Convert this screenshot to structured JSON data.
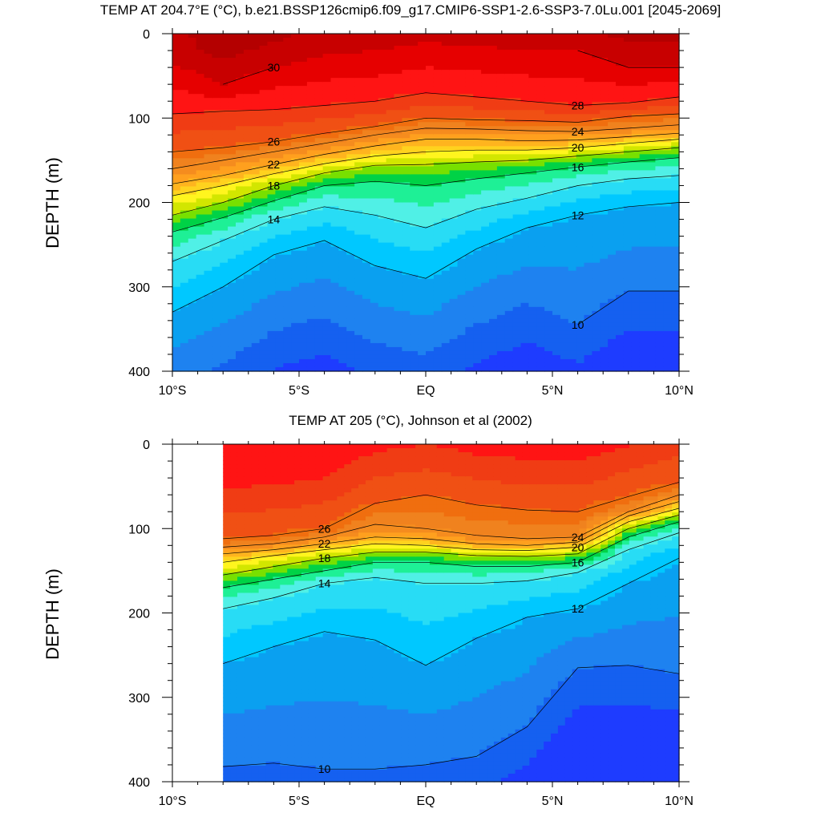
{
  "chart_data": [
    {
      "type": "heatmap",
      "subtype": "filled-contour depth section",
      "title": "TEMP AT 204.7°E (°C), b.e21.BSSP126cmip6.f09_g17.CMIP6-SSP1-2.6-SSP3-7.0Lu.001 [2045-2069]",
      "xlabel": "",
      "ylabel": "DEPTH (m)",
      "xlim": [
        -10,
        10
      ],
      "ylim": [
        400,
        0
      ],
      "x_tick_values": [
        -10,
        -5,
        0,
        5,
        10
      ],
      "x_tick_labels": [
        "10°S",
        "5°S",
        "EQ",
        "5°N",
        "10°N"
      ],
      "y_tick_values": [
        0,
        100,
        200,
        300,
        400
      ],
      "y_tick_labels": [
        "0",
        "100",
        "200",
        "300",
        "400"
      ],
      "data_x_range": [
        -10,
        10
      ],
      "levels": [
        30,
        28,
        26,
        24,
        22,
        20,
        18,
        16,
        14,
        12,
        10
      ],
      "isotherm_depths": {
        "lat": [
          -10,
          -8,
          -6,
          -4,
          -2,
          0,
          2,
          4,
          6,
          8,
          10
        ],
        "lines": [
          {
            "t": 30,
            "depth": [
              null,
              60,
              40,
              null,
              null,
              null,
              null,
              null,
              20,
              40,
              40
            ]
          },
          {
            "t": 28,
            "depth": [
              95,
              92,
              90,
              85,
              80,
              70,
              75,
              80,
              85,
              82,
              75
            ]
          },
          {
            "t": 26,
            "depth": [
              140,
              135,
              128,
              118,
              110,
              100,
              102,
              103,
              105,
              98,
              95
            ]
          },
          {
            "t": 24,
            "depth": [
              160,
              150,
              140,
              130,
              120,
              112,
              113,
              115,
              116,
              112,
              108
            ]
          },
          {
            "t": 22,
            "depth": [
              178,
              168,
              155,
              143,
              133,
              125,
              125,
              127,
              126,
              122,
              118
            ]
          },
          {
            "t": 20,
            "depth": [
              192,
              180,
              166,
              154,
              145,
              140,
              138,
              138,
              135,
              130,
              125
            ]
          },
          {
            "t": 18,
            "depth": [
              215,
              200,
              180,
              165,
              156,
              155,
              152,
              150,
              145,
              140,
              135
            ]
          },
          {
            "t": 16,
            "depth": [
              235,
              218,
              198,
              180,
              175,
              180,
              172,
              165,
              158,
              152,
              147
            ]
          },
          {
            "t": 14,
            "depth": [
              270,
              245,
              220,
              205,
              215,
              230,
              208,
              195,
              180,
              172,
              168
            ]
          },
          {
            "t": 12,
            "depth": [
              330,
              300,
              262,
              245,
              275,
              290,
              255,
              230,
              215,
              205,
              200
            ]
          },
          {
            "t": 10,
            "depth": [
              null,
              null,
              null,
              null,
              null,
              null,
              null,
              null,
              345,
              305,
              305
            ]
          }
        ]
      },
      "contour_labels": [
        "30",
        "28",
        "26",
        "24",
        "22",
        "20",
        "18",
        "16",
        "14",
        "12",
        "10"
      ]
    },
    {
      "type": "heatmap",
      "subtype": "filled-contour depth section",
      "title": "TEMP AT 205 (°C), Johnson et al (2002)",
      "xlabel": "",
      "ylabel": "DEPTH (m)",
      "xlim": [
        -10,
        10
      ],
      "ylim": [
        400,
        0
      ],
      "x_tick_values": [
        -10,
        -5,
        0,
        5,
        10
      ],
      "x_tick_labels": [
        "10°S",
        "5°S",
        "EQ",
        "5°N",
        "10°N"
      ],
      "y_tick_values": [
        0,
        100,
        200,
        300,
        400
      ],
      "y_tick_labels": [
        "0",
        "100",
        "200",
        "300",
        "400"
      ],
      "data_x_range": [
        -8,
        10
      ],
      "levels": [
        26,
        24,
        22,
        20,
        18,
        16,
        14,
        12,
        10
      ],
      "isotherm_depths": {
        "lat": [
          -8,
          -6,
          -4,
          -2,
          0,
          2,
          4,
          6,
          8,
          10
        ],
        "lines": [
          {
            "t": 26,
            "depth": [
              112,
              108,
              100,
              70,
              60,
              72,
              78,
              80,
              62,
              45
            ]
          },
          {
            "t": 24,
            "depth": [
              122,
              118,
              110,
              95,
              100,
              108,
              112,
              110,
              80,
              60
            ]
          },
          {
            "t": 22,
            "depth": [
              130,
              125,
              118,
              110,
              112,
              118,
              120,
              116,
              85,
              68
            ]
          },
          {
            "t": 20,
            "depth": [
              140,
              132,
              125,
              118,
              120,
              125,
              126,
              122,
              92,
              76
            ]
          },
          {
            "t": 18,
            "depth": [
              155,
              145,
              135,
              128,
              128,
              132,
              133,
              130,
              100,
              84
            ]
          },
          {
            "t": 16,
            "depth": [
              170,
              160,
              150,
              140,
              140,
              145,
              145,
              140,
              110,
              92
            ]
          },
          {
            "t": 14,
            "depth": [
              195,
              182,
              165,
              158,
              165,
              165,
              162,
              152,
              125,
              105
            ]
          },
          {
            "t": 12,
            "depth": [
              260,
              240,
              222,
              232,
              262,
              230,
              205,
              195,
              165,
              135
            ]
          },
          {
            "t": 10,
            "depth": [
              382,
              378,
              385,
              385,
              380,
              370,
              335,
              265,
              262,
              272
            ]
          }
        ]
      },
      "contour_labels": [
        "26",
        "24",
        "22",
        "20",
        "18",
        "16",
        "14",
        "12",
        "10"
      ]
    }
  ]
}
